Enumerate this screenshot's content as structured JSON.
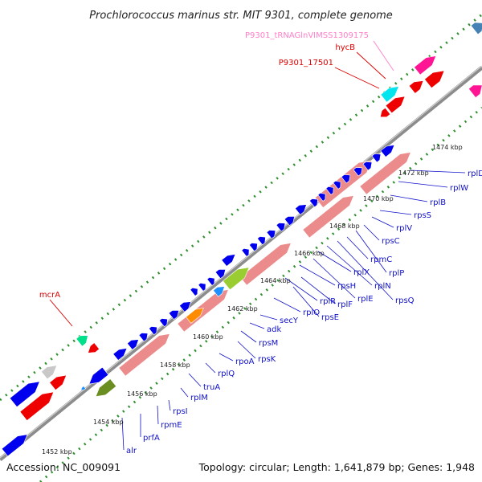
{
  "title": "Prochlorococcus marinus str. MIT 9301, complete genome",
  "footer": {
    "accession": "Accession: NC_009091",
    "info": "Topology: circular; Length: 1,641,879 bp; Genes: 1,948"
  },
  "colors": {
    "backbone": "#8c8c8c",
    "gc_dots": "#2f8f2f",
    "gene_blue": "#0000ee",
    "rrna_pink": "#ec8b8b",
    "trna_cyan": "#00e5ee",
    "gene_red": "#ee0000",
    "gene_magenta": "#ff1493",
    "gene_grey": "#c8c8c8",
    "gene_green": "#6b8e23",
    "gene_lime": "#9acd32",
    "gene_orange": "#ff8c00",
    "gene_sky": "#1e90ff",
    "gene_teal": "#00e08a",
    "label_blue": "#1010cc",
    "label_red": "#dd0000",
    "label_pink": "#ff7fc8"
  },
  "ticks": [
    "1452 kbp",
    "1454 kbp",
    "1456 kbp",
    "1458 kbp",
    "1460 kbp",
    "1462 kbp",
    "1464 kbp",
    "1466 kbp",
    "1468 kbp",
    "1470 kbp",
    "1472 kbp",
    "1474 kbp"
  ],
  "blue_labels": [
    "alr",
    "prfA",
    "rpmE",
    "rpsI",
    "rplM",
    "truA",
    "rplQ",
    "rpoA",
    "rpsK",
    "rpsM",
    "adk",
    "secY",
    "rplO",
    "rpsE",
    "rplR",
    "rplF",
    "rpsH",
    "rplE",
    "rplX",
    "rplN",
    "rpsQ",
    "rpmC",
    "rplP",
    "rpsC",
    "rplV",
    "rpsS",
    "rplB",
    "rplW",
    "rplD"
  ],
  "red_labels": [
    "mcrA",
    "P9301_17501",
    "hycB"
  ],
  "pink_labels": [
    "P9301_tRNAGlnVIMSS1309175"
  ]
}
